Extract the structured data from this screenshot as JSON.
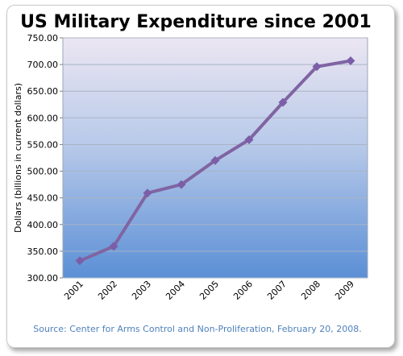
{
  "chart_data": {
    "type": "line",
    "title": "US Military Expenditure since 2001",
    "xlabel": "",
    "ylabel": "Dollars (billions in current dollars)",
    "categories": [
      "2001",
      "2002",
      "2003",
      "2004",
      "2005",
      "2006",
      "2007",
      "2008",
      "2009"
    ],
    "values": [
      332,
      359,
      459,
      475,
      520,
      559,
      629,
      696,
      707
    ],
    "ylim": [
      300,
      750
    ],
    "yticks": [
      "300.00",
      "350.00",
      "400.00",
      "450.00",
      "500.00",
      "550.00",
      "600.00",
      "650.00",
      "700.00",
      "750.00"
    ],
    "grid": true,
    "source": "Source: Center for Arms Control and Non-Proliferation, February 20, 2008.",
    "colors": {
      "line": "#8064a2",
      "marker": "#7b5ea7",
      "background_top": "#ece6f2",
      "background_bottom": "#5b8fd6",
      "source_text": "#4f81bd"
    }
  }
}
